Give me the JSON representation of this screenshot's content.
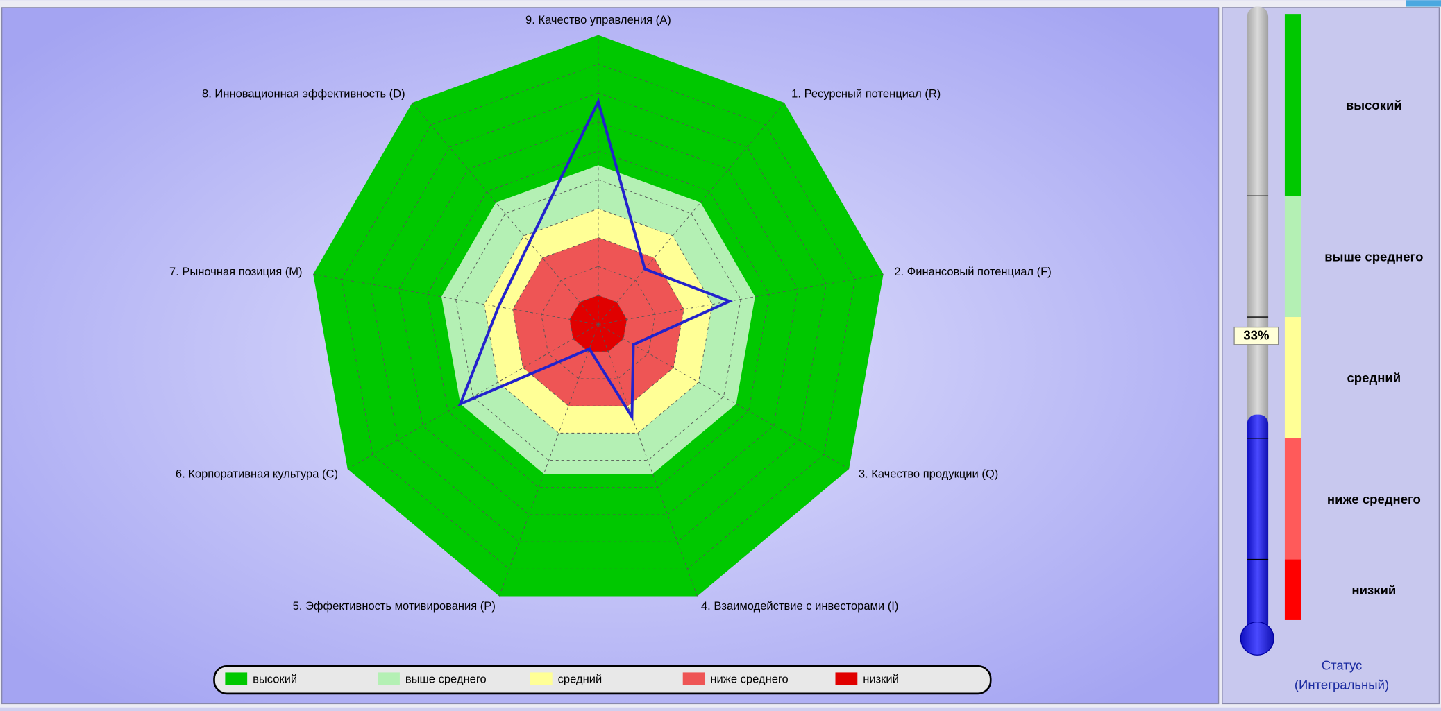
{
  "chart_data": {
    "type": "radar",
    "categories": [
      "9. Качество управления (A)",
      "1. Ресурсный потенциал (R)",
      "2. Финансовый потенциал (F)",
      "3. Качество продукции (Q)",
      "4. Взаимодействие с инвесторами (I)",
      "5. Эффективность мотивирования (P)",
      "6. Корпоративная культура (C)",
      "7. Рыночная позиция (M)",
      "8. Инновационная эффективность (D)"
    ],
    "values": [
      77,
      25,
      46,
      14,
      34,
      9,
      55,
      35,
      37
    ],
    "color": "#2222cc",
    "rlim": [
      0,
      100
    ],
    "rticks": [
      10,
      20,
      30,
      40,
      50,
      60,
      70,
      80,
      90
    ],
    "grid": true,
    "bands": [
      {
        "name": "высокий",
        "color": "#00c800",
        "from": 55,
        "to": 100
      },
      {
        "name": "выше среднего",
        "color": "#b4f0b4",
        "from": 40,
        "to": 55
      },
      {
        "name": "средний",
        "color": "#ffff96",
        "from": 30,
        "to": 40
      },
      {
        "name": "ниже среднего",
        "color": "#ee5555",
        "from": 10,
        "to": 30
      },
      {
        "name": "низкий",
        "color": "#e00000",
        "from": 0,
        "to": 10
      }
    ],
    "status": {
      "value": 33,
      "value_label": "33%",
      "color": "#2020e0",
      "ylim": [
        0,
        100
      ],
      "yticks": [
        10,
        30,
        50,
        70
      ],
      "label": "Статус (Интегральный)",
      "bands": [
        {
          "name": "высокий",
          "color": "#00c800",
          "from": 70,
          "to": 100
        },
        {
          "name": "выше среднего",
          "color": "#b4f0b4",
          "from": 50,
          "to": 70
        },
        {
          "name": "средний",
          "color": "#ffff96",
          "from": 30,
          "to": 50
        },
        {
          "name": "ниже среднего",
          "color": "#ff5a5a",
          "from": 10,
          "to": 30
        },
        {
          "name": "низкий",
          "color": "#ff0000",
          "from": 0,
          "to": 10
        }
      ]
    }
  }
}
